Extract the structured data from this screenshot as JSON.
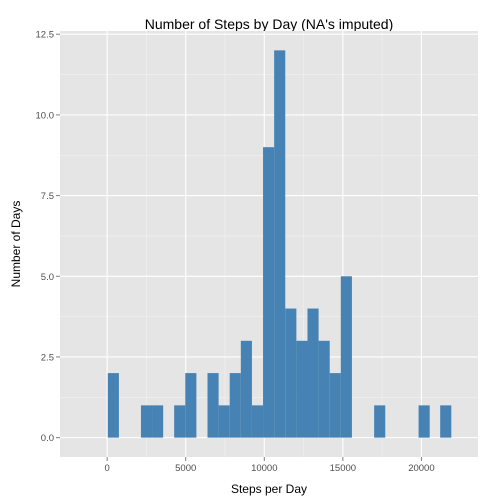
{
  "chart_data": {
    "type": "bar",
    "title": "Number of Steps by Day (NA's imputed)",
    "xlabel": "Steps per Day",
    "ylabel": "Number of Days",
    "xlim": [
      -3000,
      23600
    ],
    "ylim": [
      -0.6,
      12.6
    ],
    "bin_width": 707,
    "x_ticks": [
      0,
      5000,
      10000,
      15000,
      20000
    ],
    "x_tick_labels": [
      "0",
      "5000",
      "10000",
      "15000",
      "20000"
    ],
    "y_ticks": [
      0,
      2.5,
      5,
      7.5,
      10,
      12.5
    ],
    "y_tick_labels": [
      "0.0",
      "2.5",
      "5.0",
      "7.5",
      "10.0",
      "12.5"
    ],
    "bins": [
      {
        "x": 41,
        "y": 2
      },
      {
        "x": 2151,
        "y": 1
      },
      {
        "x": 2858,
        "y": 1
      },
      {
        "x": 4265,
        "y": 1
      },
      {
        "x": 4972,
        "y": 2
      },
      {
        "x": 6386,
        "y": 2
      },
      {
        "x": 7093,
        "y": 1
      },
      {
        "x": 7800,
        "y": 2
      },
      {
        "x": 8507,
        "y": 3
      },
      {
        "x": 9214,
        "y": 1
      },
      {
        "x": 9921,
        "y": 9
      },
      {
        "x": 10628,
        "y": 12
      },
      {
        "x": 11335,
        "y": 4
      },
      {
        "x": 12042,
        "y": 3
      },
      {
        "x": 12749,
        "y": 4
      },
      {
        "x": 13456,
        "y": 3
      },
      {
        "x": 14163,
        "y": 2
      },
      {
        "x": 14870,
        "y": 5
      },
      {
        "x": 16991,
        "y": 1
      },
      {
        "x": 19819,
        "y": 1
      },
      {
        "x": 21194,
        "y": 1
      }
    ],
    "grid": true,
    "colors": {
      "bar": "#4682B4",
      "panel": "#E5E5E5",
      "grid_major": "#FFFFFF",
      "grid_minor": "#F2F2F2"
    }
  }
}
